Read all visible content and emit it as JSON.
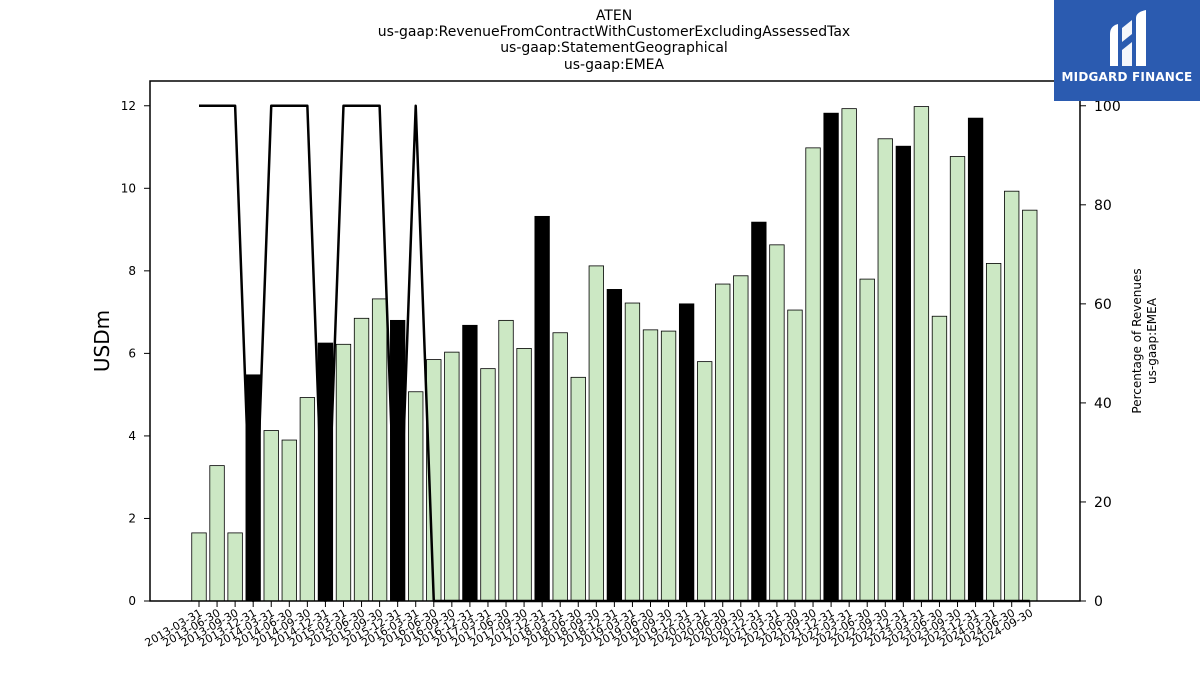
{
  "title_lines": [
    "ATEN",
    "us-gaap:RevenueFromContractWithCustomerExcludingAssessedTax",
    "us-gaap:StatementGeographical",
    "us-gaap:EMEA"
  ],
  "logo": {
    "text": "MIDGARD FINANCE",
    "bg": "#2b5bb0"
  },
  "colors": {
    "bar_default": "#cce8c4",
    "bar_highlight": "#000000",
    "line": "#000000"
  },
  "chart_data": {
    "type": "bar",
    "categories": [
      "2013-03-31",
      "2013-06-30",
      "2013-09-30",
      "2013-12-31",
      "2014-03-31",
      "2014-06-30",
      "2014-09-30",
      "2014-12-31",
      "2015-03-31",
      "2015-06-30",
      "2015-09-30",
      "2015-12-31",
      "2016-03-31",
      "2016-06-30",
      "2016-09-30",
      "2016-12-31",
      "2017-03-31",
      "2017-06-30",
      "2017-09-30",
      "2017-12-31",
      "2018-03-31",
      "2018-06-30",
      "2018-09-30",
      "2018-12-31",
      "2019-03-31",
      "2019-06-30",
      "2019-09-30",
      "2019-12-31",
      "2020-03-31",
      "2020-06-30",
      "2020-09-30",
      "2020-12-31",
      "2021-03-31",
      "2021-06-30",
      "2021-09-30",
      "2021-12-31",
      "2022-03-31",
      "2022-06-30",
      "2022-09-30",
      "2022-12-31",
      "2023-03-31",
      "2023-06-30",
      "2023-09-30",
      "2023-12-31",
      "2024-03-31",
      "2024-06-30",
      "2024-09-30"
    ],
    "values": [
      1.65,
      3.28,
      1.65,
      5.48,
      4.13,
      3.9,
      4.93,
      6.25,
      6.22,
      6.85,
      7.32,
      6.8,
      5.07,
      5.85,
      6.03,
      6.68,
      5.63,
      6.8,
      6.12,
      9.32,
      6.5,
      5.42,
      8.12,
      7.55,
      7.22,
      6.57,
      6.54,
      7.2,
      5.8,
      7.68,
      7.88,
      9.18,
      8.63,
      7.05,
      10.98,
      11.82,
      11.93,
      7.8,
      11.2,
      11.02,
      11.98,
      6.9,
      10.77,
      11.7,
      8.18,
      9.93,
      9.47
    ],
    "highlight": [
      false,
      false,
      false,
      true,
      false,
      false,
      false,
      true,
      false,
      false,
      false,
      true,
      false,
      false,
      false,
      true,
      false,
      false,
      false,
      true,
      false,
      false,
      false,
      true,
      false,
      false,
      false,
      true,
      false,
      false,
      false,
      true,
      false,
      false,
      false,
      true,
      false,
      false,
      false,
      true,
      false,
      false,
      false,
      true,
      false,
      false,
      false
    ],
    "line_series": [
      100,
      100,
      100,
      0,
      100,
      100,
      100,
      0,
      100,
      100,
      100,
      0,
      100,
      0,
      0,
      0,
      0,
      0,
      0,
      0,
      0,
      0,
      0,
      0,
      0,
      0,
      0,
      0,
      0,
      0,
      0,
      0,
      0,
      0,
      0,
      0,
      0,
      0,
      0,
      0,
      0,
      0,
      0,
      0,
      0,
      0,
      0
    ],
    "ylabel": "USDm",
    "ylim": [
      0,
      12.6
    ],
    "yticks": [
      0,
      2,
      4,
      6,
      8,
      10,
      12
    ],
    "y2label_lines": [
      "Percentage of Revenues",
      "us-gaap:EMEA"
    ],
    "y2lim": [
      0,
      105
    ],
    "y2ticks": [
      0,
      20,
      40,
      60,
      80,
      100
    ],
    "grid": false
  }
}
